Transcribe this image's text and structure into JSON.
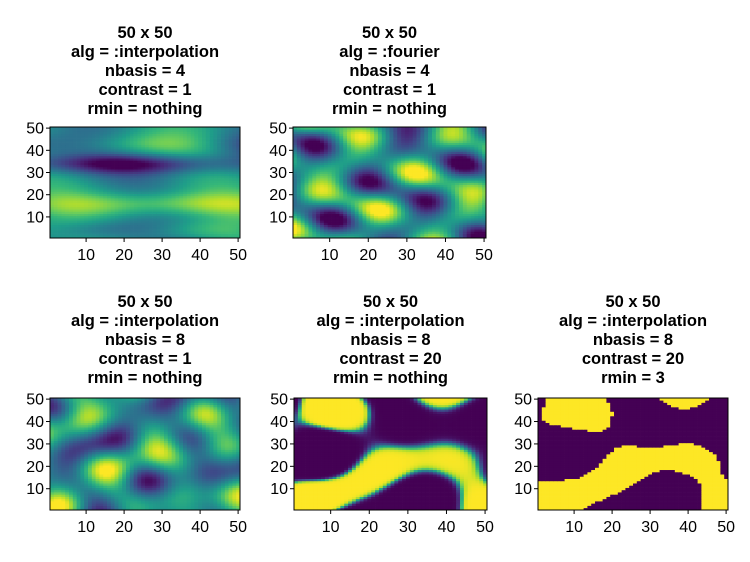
{
  "colors": {
    "viridis_low": "#440154",
    "viridis_mid": "#21908d",
    "viridis_high": "#fde725",
    "frame": "#000000"
  },
  "chart_data": [
    {
      "type": "heatmap",
      "title_lines": [
        "50 x 50",
        "alg = :interpolation",
        "nbasis = 4",
        "contrast = 1",
        "rmin = nothing"
      ],
      "xlim": [
        0.5,
        50.5
      ],
      "ylim": [
        0.5,
        50.5
      ],
      "xticks": [
        "10",
        "20",
        "30",
        "40",
        "50"
      ],
      "yticks": [
        "10",
        "20",
        "30",
        "40",
        "50"
      ],
      "grid_size": [
        50,
        50
      ],
      "colormap": "viridis",
      "pattern": "smooth interpolation, 4 basis functions: dark band near y≈35, bright bands near y≈15 and y≈40"
    },
    {
      "type": "heatmap",
      "title_lines": [
        "50 x 50",
        "alg = :fourier",
        "nbasis = 4",
        "contrast = 1",
        "rmin = nothing"
      ],
      "xlim": [
        0.5,
        50.5
      ],
      "ylim": [
        0.5,
        50.5
      ],
      "xticks": [
        "10",
        "20",
        "30",
        "40",
        "50"
      ],
      "yticks": [
        "10",
        "20",
        "30",
        "40",
        "50"
      ],
      "grid_size": [
        50,
        50
      ],
      "colormap": "viridis",
      "pattern": "fourier basis, 4 terms: diagonal periodic blobs"
    },
    {
      "type": "heatmap",
      "title_lines": [
        "50 x 50",
        "alg = :interpolation",
        "nbasis = 8",
        "contrast = 1",
        "rmin = nothing"
      ],
      "xlim": [
        0.5,
        50.5
      ],
      "ylim": [
        0.5,
        50.5
      ],
      "xticks": [
        "10",
        "20",
        "30",
        "40",
        "50"
      ],
      "yticks": [
        "10",
        "20",
        "30",
        "40",
        "50"
      ],
      "grid_size": [
        50,
        50
      ],
      "colormap": "viridis",
      "pattern": "interpolation, 8 basis functions: finer mottled texture"
    },
    {
      "type": "heatmap",
      "title_lines": [
        "50 x 50",
        "alg = :interpolation",
        "nbasis = 8",
        "contrast = 20",
        "rmin = nothing"
      ],
      "xlim": [
        0.5,
        50.5
      ],
      "ylim": [
        0.5,
        50.5
      ],
      "xticks": [
        "10",
        "20",
        "30",
        "40",
        "50"
      ],
      "yticks": [
        "10",
        "20",
        "30",
        "40",
        "50"
      ],
      "grid_size": [
        50,
        50
      ],
      "colormap": "viridis",
      "pattern": "high contrast: near-binary yellow/purple regions"
    },
    {
      "type": "heatmap",
      "title_lines": [
        "50 x 50",
        "alg = :interpolation",
        "nbasis = 8",
        "contrast = 20",
        "rmin = 3"
      ],
      "xlim": [
        0.5,
        50.5
      ],
      "ylim": [
        0.5,
        50.5
      ],
      "xticks": [
        "10",
        "20",
        "30",
        "40",
        "50"
      ],
      "yticks": [
        "10",
        "20",
        "30",
        "40",
        "50"
      ],
      "grid_size": [
        50,
        50
      ],
      "colormap": "viridis",
      "pattern": "high contrast with rmin=3: binary regions, small features removed"
    }
  ]
}
